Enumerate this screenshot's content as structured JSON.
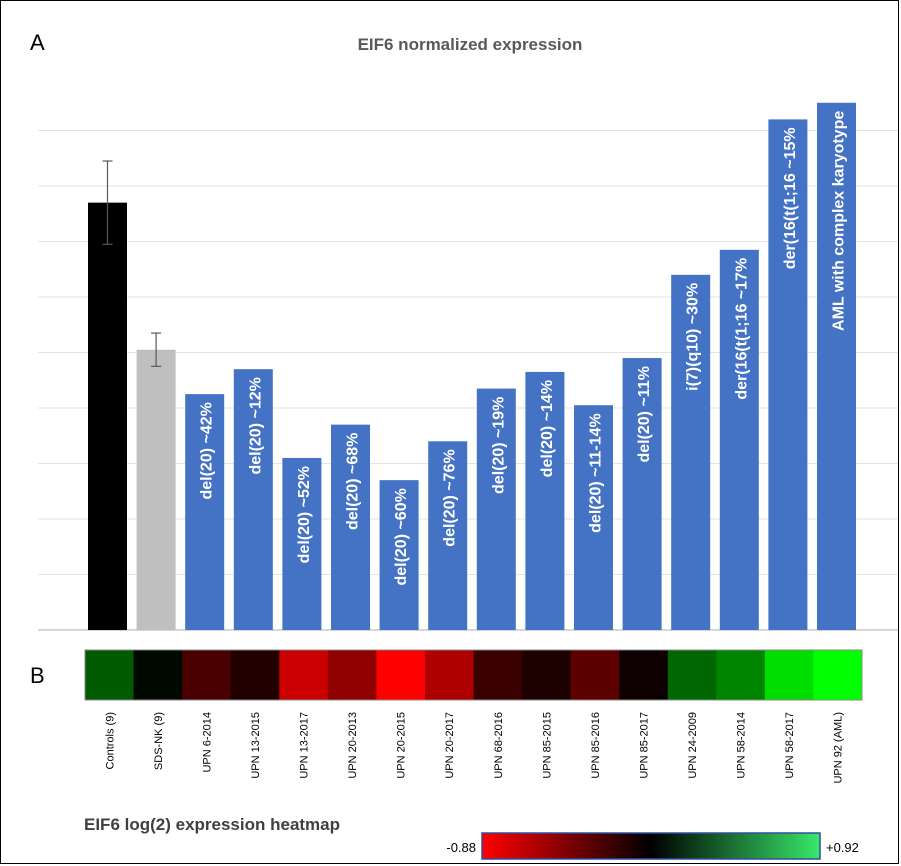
{
  "panel_a_label": "A",
  "panel_b_label": "B",
  "chart_data": [
    {
      "type": "bar",
      "title": "EIF6 normalized expression",
      "categories": [
        "Controls (9)",
        "SDS-NK (9)",
        "UPN 6-2014",
        "UPN 13-2015",
        "UPN 13-2017",
        "UPN 20-2013",
        "UPN 20-2015",
        "UPN 20-2017",
        "UPN 68-2016",
        "UPN 85-2015",
        "UPN 85-2016",
        "UPN 85-2017",
        "UPN 24-2009",
        "UPN 58-2014",
        "UPN 58-2017",
        "UPN 92 (AML)"
      ],
      "values": [
        7.7,
        5.05,
        4.25,
        4.7,
        3.1,
        3.7,
        2.7,
        3.4,
        4.35,
        4.65,
        4.05,
        4.9,
        6.4,
        6.85,
        9.2,
        9.5
      ],
      "errors": [
        0.75,
        0.3,
        null,
        null,
        null,
        null,
        null,
        null,
        null,
        null,
        null,
        null,
        null,
        null,
        null,
        null
      ],
      "bar_labels": [
        "",
        "",
        "del(20) ~42%",
        "del(20) ~12%",
        "del(20) ~52%",
        "del(20) ~68%",
        "del(20) ~60%",
        "del(20) ~76%",
        "del(20) ~19%",
        "del(20) ~14%",
        "del(20) ~11-14%",
        "del(20) ~11%",
        "i(7)(q10) ~30%",
        "der(16(t(1;16 ~17%",
        "der(16(t(1;16 ~15%",
        "AML with complex karyotype"
      ],
      "colors": [
        "#000000",
        "#bfbfbf",
        "#4472c4",
        "#4472c4",
        "#4472c4",
        "#4472c4",
        "#4472c4",
        "#4472c4",
        "#4472c4",
        "#4472c4",
        "#4472c4",
        "#4472c4",
        "#4472c4",
        "#4472c4",
        "#4472c4",
        "#4472c4"
      ],
      "ylim": [
        0,
        10
      ],
      "grid": true
    },
    {
      "type": "heatmap",
      "title": "EIF6 log(2) expression heatmap",
      "categories": [
        "Controls (9)",
        "SDS-NK (9)",
        "UPN 6-2014",
        "UPN 13-2015",
        "UPN 13-2017",
        "UPN 20-2013",
        "UPN 20-2015",
        "UPN 20-2017",
        "UPN 68-2016",
        "UPN 85-2015",
        "UPN 85-2016",
        "UPN 85-2017",
        "UPN 24-2009",
        "UPN 58-2014",
        "UPN 58-2017",
        "UPN 92 (AML)"
      ],
      "values": [
        0.33,
        0.03,
        -0.25,
        -0.12,
        -0.7,
        -0.5,
        -0.88,
        -0.6,
        -0.2,
        -0.1,
        -0.32,
        -0.05,
        0.37,
        0.48,
        0.8,
        0.92
      ],
      "scale_min": -0.88,
      "scale_max": 0.92,
      "scale_min_label": "-0.88",
      "scale_max_label": "+0.92",
      "colors": {
        "low": "#ff0000",
        "mid": "#000000",
        "high": "#00ff00"
      }
    }
  ]
}
